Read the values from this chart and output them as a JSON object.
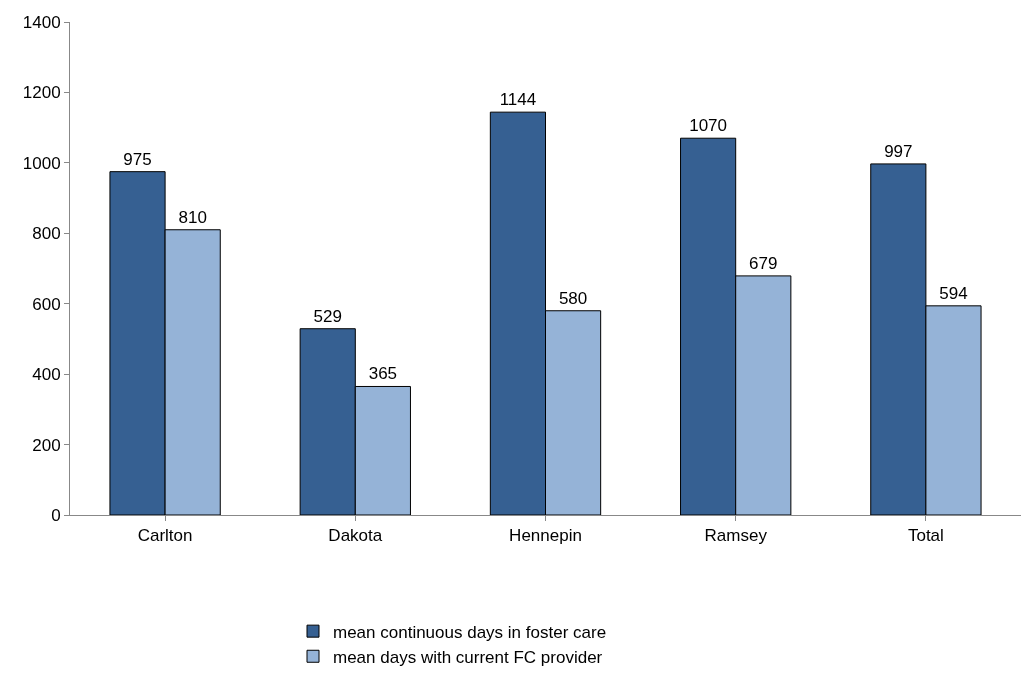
{
  "chart_data": {
    "type": "bar",
    "categories": [
      "Carlton",
      "Dakota",
      "Hennepin",
      "Ramsey",
      "Total"
    ],
    "series": [
      {
        "name": "mean continuous days in foster care",
        "color": "#366092",
        "values": [
          975,
          529,
          1144,
          1070,
          997
        ]
      },
      {
        "name": "mean days with current FC provider",
        "color": "#95b3d7",
        "values": [
          810,
          365,
          580,
          679,
          594
        ]
      }
    ],
    "ylim": [
      0,
      1400
    ],
    "yticks": [
      0,
      200,
      400,
      600,
      800,
      1000,
      1200,
      1400
    ],
    "data_labels": true,
    "grid": false,
    "legend": "bottom"
  }
}
